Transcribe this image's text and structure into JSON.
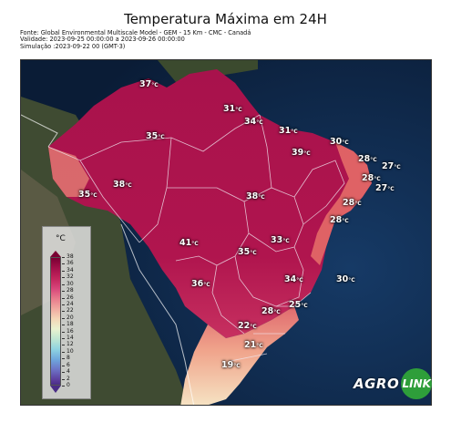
{
  "header": {
    "title": "Temperatura Máxima em 24H",
    "source_line": "Fonte: Global Environmental Multiscale Model - GEM - 15 Km - CMC - Canadá",
    "validity_line": "Validade: 2023-09-25 00:00:00 a 2023-09-26 00:00:00",
    "simulation_line": "Simulação :2023-09-22 00 (GMT-3)"
  },
  "legend": {
    "unit": "°C",
    "ticks": [
      "38",
      "36",
      "34",
      "32",
      "30",
      "28",
      "26",
      "24",
      "22",
      "20",
      "18",
      "16",
      "14",
      "12",
      "10",
      "8",
      "6",
      "4",
      "2",
      "0"
    ]
  },
  "labels": [
    {
      "value": "37",
      "unit": "°C"
    },
    {
      "value": "31",
      "unit": "°C"
    },
    {
      "value": "34",
      "unit": "°C"
    },
    {
      "value": "35",
      "unit": "°C"
    },
    {
      "value": "31",
      "unit": "°C"
    },
    {
      "value": "30",
      "unit": "°C"
    },
    {
      "value": "39",
      "unit": "°C"
    },
    {
      "value": "28",
      "unit": "°C"
    },
    {
      "value": "27",
      "unit": "°C"
    },
    {
      "value": "28",
      "unit": "°C"
    },
    {
      "value": "27",
      "unit": "°C"
    },
    {
      "value": "35",
      "unit": "°C"
    },
    {
      "value": "38",
      "unit": "°C"
    },
    {
      "value": "38",
      "unit": "°C"
    },
    {
      "value": "28",
      "unit": "°C"
    },
    {
      "value": "28",
      "unit": "°C"
    },
    {
      "value": "41",
      "unit": "°C"
    },
    {
      "value": "33",
      "unit": "°C"
    },
    {
      "value": "35",
      "unit": "°C"
    },
    {
      "value": "36",
      "unit": "°C"
    },
    {
      "value": "34",
      "unit": "°C"
    },
    {
      "value": "30",
      "unit": "°C"
    },
    {
      "value": "25",
      "unit": "°C"
    },
    {
      "value": "28",
      "unit": "°C"
    },
    {
      "value": "22",
      "unit": "°C"
    },
    {
      "value": "21",
      "unit": "°C"
    },
    {
      "value": "19",
      "unit": "°C"
    }
  ],
  "logo": {
    "word1": "AGRO",
    "word2": "LINK"
  },
  "colors": {
    "hot": "#a3104a",
    "ocean": "#0e2545",
    "land": "#3d4a30",
    "cool": "#f4d6b6"
  }
}
